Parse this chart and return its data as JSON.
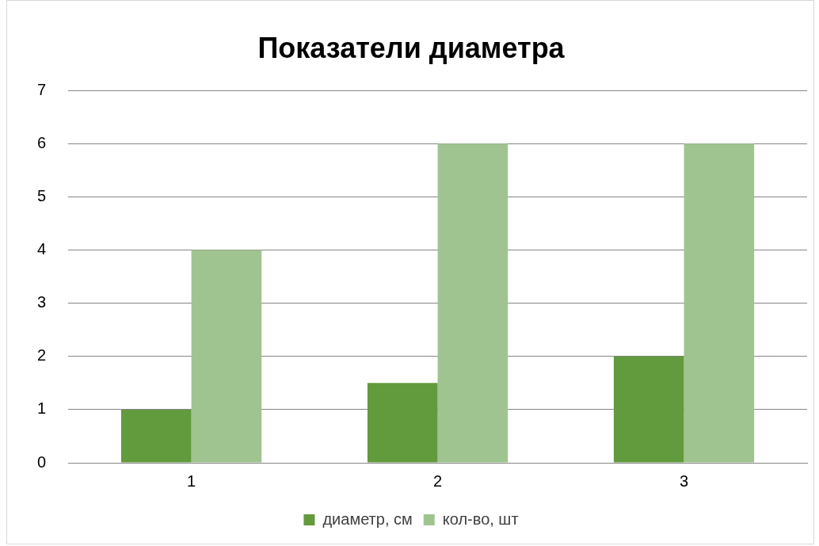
{
  "chart_data": {
    "type": "bar",
    "title": "Показатели диаметра",
    "categories": [
      "1",
      "2",
      "3"
    ],
    "series": [
      {
        "name": "диаметр, см",
        "color": "#629a3e",
        "values": [
          1,
          1.5,
          2
        ]
      },
      {
        "name": "кол-во, шт",
        "color": "#a0c490",
        "values": [
          4,
          6,
          6
        ]
      }
    ],
    "ylim": [
      0,
      7
    ],
    "yticks": [
      0,
      1,
      2,
      3,
      4,
      5,
      6,
      7
    ],
    "grid": "y",
    "legend": "bottom"
  }
}
